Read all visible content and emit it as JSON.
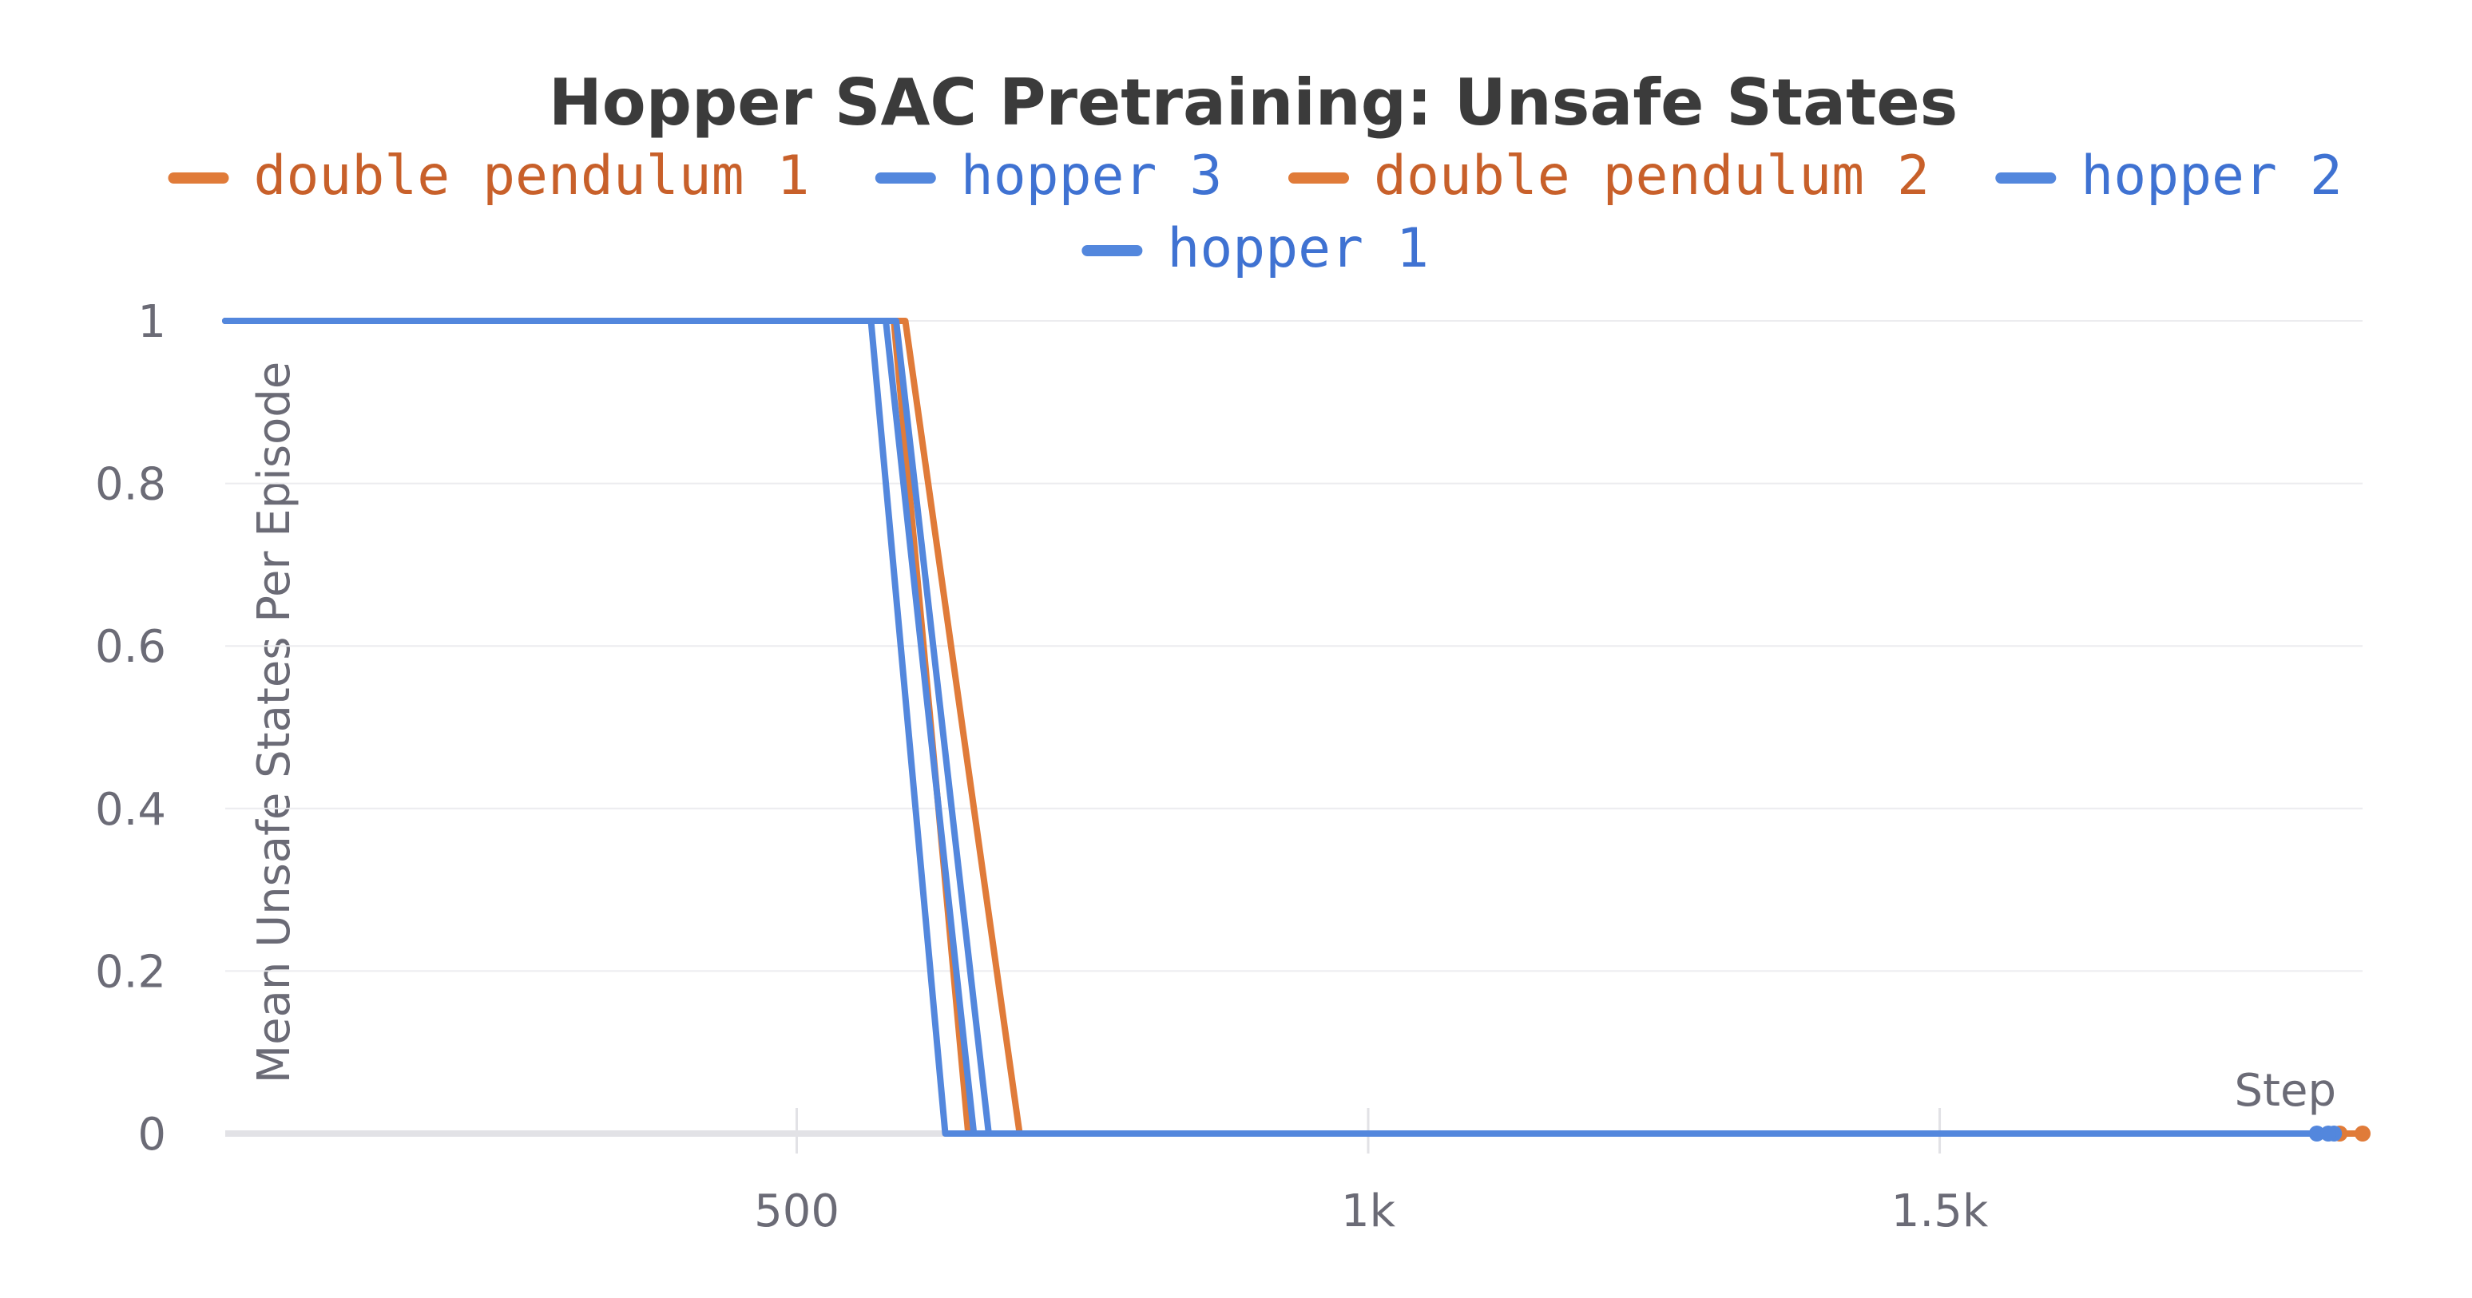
{
  "chart_data": {
    "type": "line",
    "title": "Hopper SAC Pretraining: Unsafe States",
    "xlabel": "Step",
    "ylabel": "Mean Unsafe States Per Episode",
    "xlim": [
      0,
      1870
    ],
    "ylim": [
      0,
      1
    ],
    "x_ticks": [
      500,
      1000,
      1500
    ],
    "x_tick_labels": [
      "500",
      "1k",
      "1.5k"
    ],
    "y_ticks": [
      0,
      0.2,
      0.4,
      0.6,
      0.8,
      1
    ],
    "y_tick_labels": [
      "0",
      "0.2",
      "0.4",
      "0.6",
      "0.8",
      "1"
    ],
    "grid": true,
    "legend_position": "top-center",
    "series": [
      {
        "name": "double pendulum 1",
        "color": "#e07b39",
        "label_color": "#c8602a",
        "points": [
          [
            0,
            1
          ],
          [
            585,
            1
          ],
          [
            650,
            0
          ],
          [
            1850,
            0
          ]
        ]
      },
      {
        "name": "hopper 3",
        "color": "#5387dd",
        "label_color": "#3f72d2",
        "points": [
          [
            0,
            1
          ],
          [
            565,
            1
          ],
          [
            630,
            0
          ],
          [
            1830,
            0
          ]
        ]
      },
      {
        "name": "double pendulum 2",
        "color": "#e07b39",
        "label_color": "#c8602a",
        "points": [
          [
            0,
            1
          ],
          [
            595,
            1
          ],
          [
            695,
            0
          ],
          [
            1870,
            0
          ]
        ]
      },
      {
        "name": "hopper 2",
        "color": "#5387dd",
        "label_color": "#3f72d2",
        "points": [
          [
            0,
            1
          ],
          [
            587,
            1
          ],
          [
            668,
            0
          ],
          [
            1845,
            0
          ]
        ]
      },
      {
        "name": "hopper 1",
        "color": "#5387dd",
        "label_color": "#3f72d2",
        "points": [
          [
            0,
            1
          ],
          [
            578,
            1
          ],
          [
            655,
            0
          ],
          [
            1840,
            0
          ]
        ]
      }
    ]
  }
}
